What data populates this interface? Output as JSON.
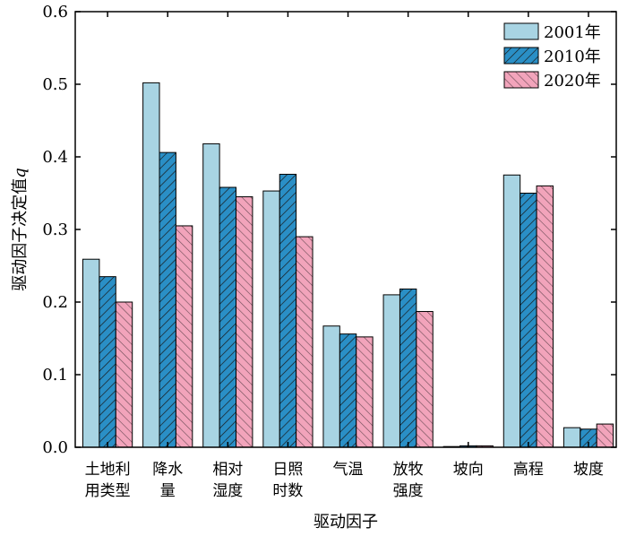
{
  "chart_data": {
    "type": "bar",
    "xlabel": "驱动因子",
    "ylabel": "驱动因子决定值",
    "ylabel_var": "q",
    "ylim": [
      0,
      0.6
    ],
    "yticks": [
      "0.0",
      "0.1",
      "0.2",
      "0.3",
      "0.4",
      "0.5",
      "0.6"
    ],
    "categories": [
      [
        "土地利",
        "用类型"
      ],
      [
        "降水",
        "量"
      ],
      [
        "相对",
        "湿度"
      ],
      [
        "日照",
        "时数"
      ],
      [
        "气温"
      ],
      [
        "放牧",
        "强度"
      ],
      [
        "坡向"
      ],
      [
        "高程"
      ],
      [
        "坡度"
      ]
    ],
    "series": [
      {
        "name": "2001年",
        "color": "#a8d4e3",
        "pattern": "none",
        "values": [
          0.259,
          0.502,
          0.418,
          0.353,
          0.167,
          0.21,
          0.001,
          0.375,
          0.027
        ]
      },
      {
        "name": "2010年",
        "color": "#2a8fc6",
        "pattern": "hatch",
        "values": [
          0.235,
          0.406,
          0.358,
          0.376,
          0.156,
          0.218,
          0.002,
          0.35,
          0.025
        ]
      },
      {
        "name": "2020年",
        "color": "#f2a4bb",
        "pattern": "hatch",
        "values": [
          0.2,
          0.305,
          0.345,
          0.29,
          0.152,
          0.187,
          0.002,
          0.36,
          0.032
        ]
      }
    ],
    "legend_position": "top-right",
    "grid": false
  }
}
